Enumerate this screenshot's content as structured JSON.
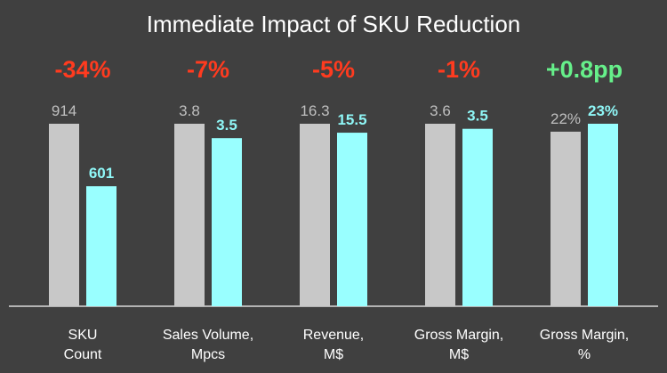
{
  "chart_data": {
    "type": "bar",
    "title": "Immediate Impact of SKU Reduction",
    "categories": [
      [
        "SKU",
        "Count"
      ],
      [
        "Sales Volume,",
        "Mpcs"
      ],
      [
        "Revenue,",
        "M$"
      ],
      [
        "Gross Margin,",
        "M$"
      ],
      [
        "Gross Margin,",
        "%"
      ]
    ],
    "series": [
      {
        "values": [
          914,
          3.8,
          16.3,
          3.6,
          22
        ],
        "value_labels": [
          "914",
          "3.8",
          "16.3",
          "3.6",
          "22%"
        ]
      },
      {
        "values": [
          601,
          3.5,
          15.5,
          3.5,
          23
        ],
        "value_labels": [
          "601",
          "3.5",
          "15.5",
          "3.5",
          "23%"
        ]
      }
    ],
    "changes": [
      {
        "label": "-34%",
        "color": "#ff3b1f"
      },
      {
        "label": "-7%",
        "color": "#ff3b1f"
      },
      {
        "label": "-5%",
        "color": "#ff3b1f"
      },
      {
        "label": "-1%",
        "color": "#ff3b1f"
      },
      {
        "label": "+0.8pp",
        "color": "#66f08a"
      }
    ],
    "colors": {
      "before": "#c8c8c8",
      "after": "#99ffff",
      "background": "#404040",
      "axis": "#d9d9d9"
    },
    "grid": false,
    "legend": "none"
  }
}
